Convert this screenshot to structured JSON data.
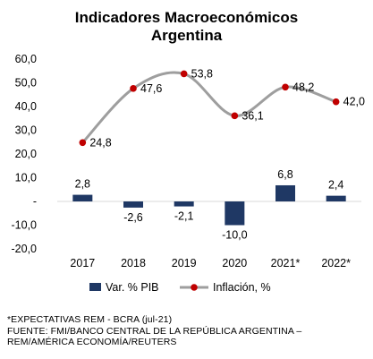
{
  "chart_data": {
    "type": "bar",
    "title": [
      "Indicadores  Macroeconómicos",
      "Argentina"
    ],
    "categories": [
      "2017",
      "2018",
      "2019",
      "2020",
      "2021*",
      "2022*"
    ],
    "y_ticks": [
      "60,0",
      "50,0",
      "40,0",
      "30,0",
      "20,0",
      "10,0",
      "-",
      "-10,0",
      "-20,0"
    ],
    "ylim": [
      -20,
      60
    ],
    "grid": false,
    "legend_position": "bottom",
    "series": [
      {
        "name": "Var. % PIB",
        "kind": "bar",
        "color": "#1f3864",
        "values": [
          2.8,
          -2.6,
          -2.1,
          -10.0,
          6.8,
          2.4
        ],
        "labels": [
          "2,8",
          "-2,6",
          "-2,1",
          "-10,0",
          "6,8",
          "2,4"
        ]
      },
      {
        "name": "Inflación, %",
        "kind": "line",
        "color": "#9e9e9e",
        "marker_color": "#c00000",
        "values": [
          24.8,
          47.6,
          53.8,
          36.1,
          48.2,
          42.0
        ],
        "labels": [
          "24,8",
          "47,6",
          "53,8",
          "36,1",
          "48,2",
          "42,0"
        ]
      }
    ]
  },
  "notes": [
    "*EXPECTATIVAS REM - BCRA (jul-21)",
    "FUENTE: FMI/BANCO CENTRAL DE LA REPÚBLICA ARGENTINA –",
    "REM/AMÉRICA ECONOMÍA/REUTERS"
  ]
}
